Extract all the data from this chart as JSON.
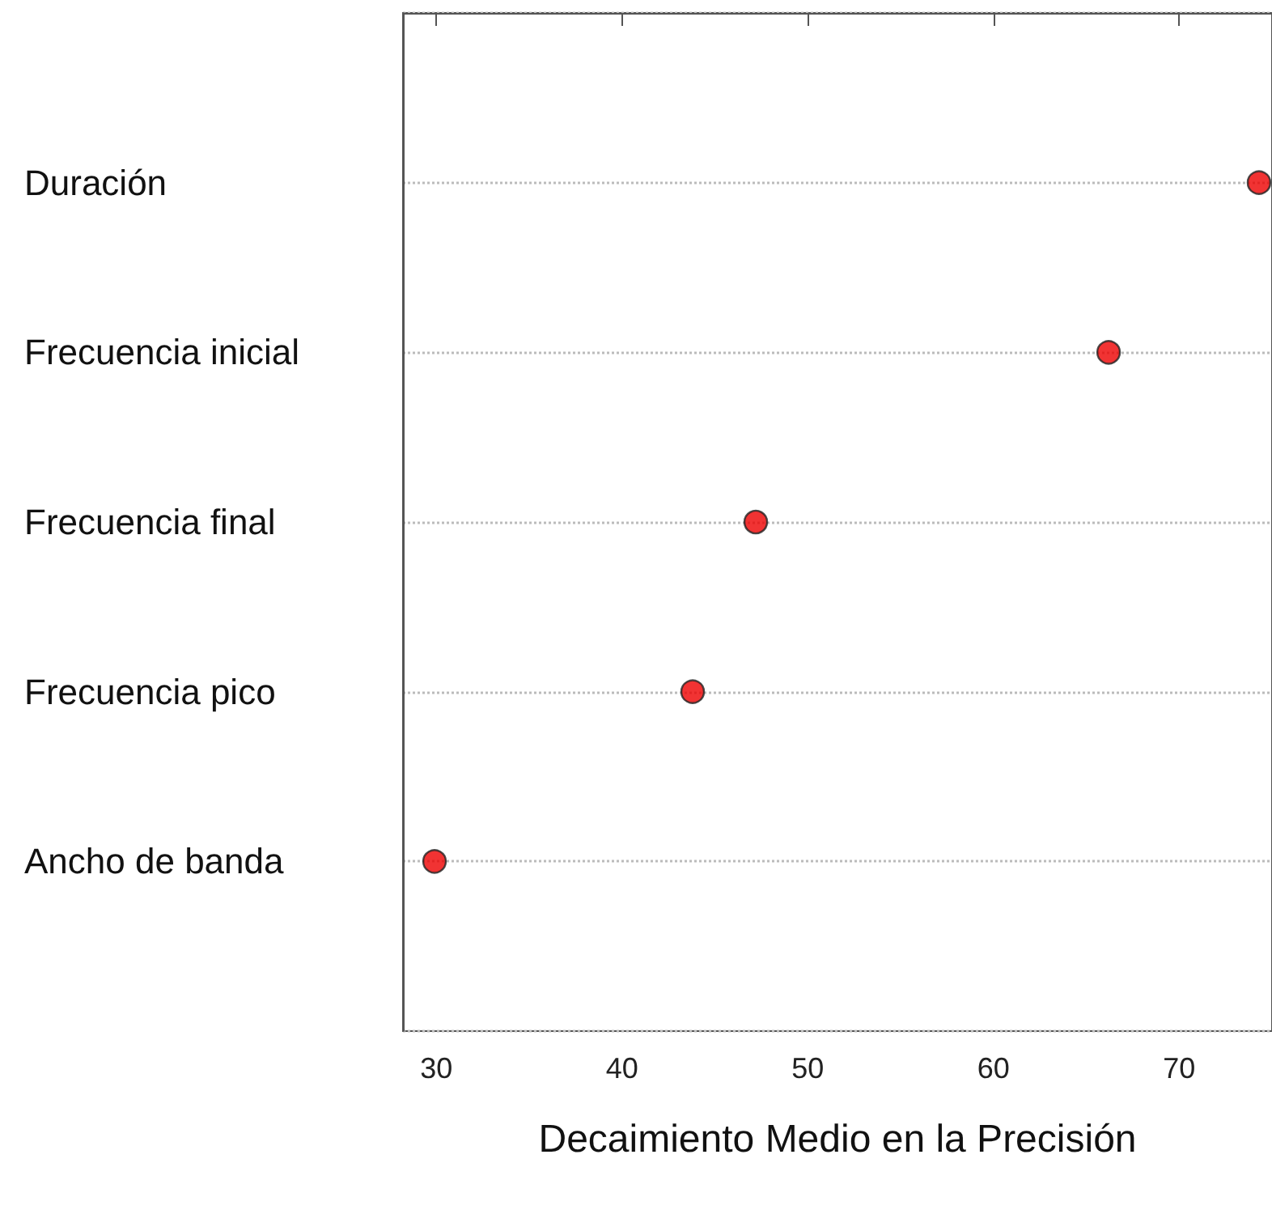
{
  "chart_data": {
    "type": "scatter",
    "orientation": "horizontal",
    "xlabel": "Decaimiento Medio en la Precisión",
    "categories": [
      "Duración",
      "Frecuencia inicial",
      "Frecuencia final",
      "Frecuencia pico",
      "Ancho de banda"
    ],
    "values": [
      74.3,
      66.2,
      47.2,
      43.8,
      29.9
    ],
    "color": "#ee0000",
    "marker": "circle",
    "xlim": [
      28.2,
      75
    ],
    "xticks": [
      30,
      40,
      50,
      60,
      70
    ],
    "grid": "y"
  }
}
